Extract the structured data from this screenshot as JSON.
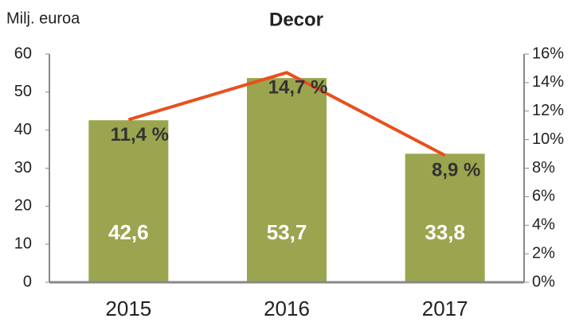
{
  "chart_data": {
    "type": "bar_line",
    "title": "Decor",
    "y_label": "Milj. euroa",
    "categories": [
      "2015",
      "2016",
      "2017"
    ],
    "series": [
      {
        "name": "Milj. euroa",
        "type": "bar",
        "color": "#9ba54f",
        "values": [
          42.6,
          53.7,
          33.8
        ],
        "value_labels": [
          "42,6",
          "53,7",
          "33,8"
        ]
      },
      {
        "name": "%",
        "type": "line",
        "axis": "y2",
        "color": "#e8501e",
        "values": [
          11.4,
          14.7,
          8.9
        ],
        "value_labels": [
          "11,4 %",
          "14,7 %",
          "8,9 %"
        ]
      }
    ],
    "ylim": [
      0,
      60
    ],
    "yticks": [
      0,
      10,
      20,
      30,
      40,
      50,
      60
    ],
    "y2lim": [
      0,
      16
    ],
    "y2ticks": [
      {
        "value": 0,
        "label": "0%"
      },
      {
        "value": 2,
        "label": "2%"
      },
      {
        "value": 4,
        "label": "4%"
      },
      {
        "value": 6,
        "label": "6%"
      },
      {
        "value": 8,
        "label": "8%"
      },
      {
        "value": 10,
        "label": "10%"
      },
      {
        "value": 12,
        "label": "12%"
      },
      {
        "value": 14,
        "label": "14%"
      },
      {
        "value": 16,
        "label": "16%"
      }
    ]
  }
}
